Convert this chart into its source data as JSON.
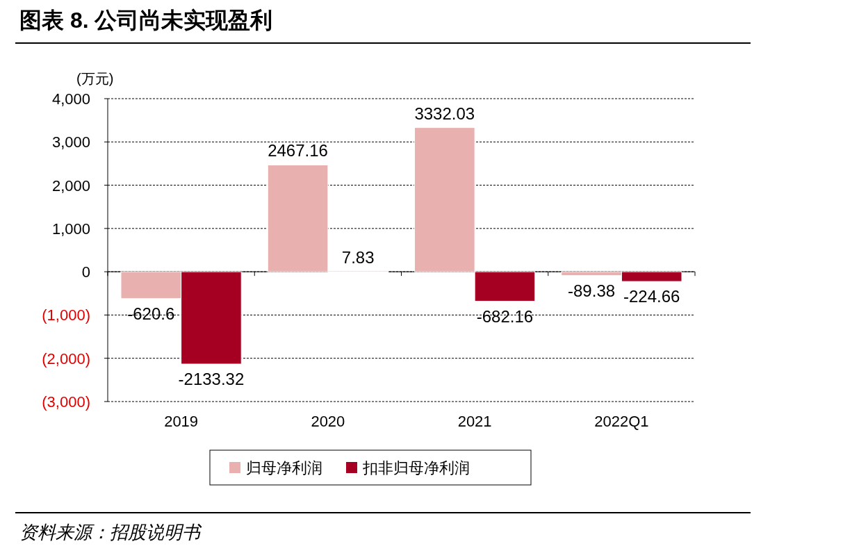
{
  "chart_data": {
    "type": "bar",
    "title": "图表 8. 公司尚未实现盈利",
    "ylabel": "(万元)",
    "categories": [
      "2019",
      "2020",
      "2021",
      "2022Q1"
    ],
    "series": [
      {
        "name": "归母净利润",
        "color": "#e8b0ae",
        "values": [
          -620.6,
          2467.16,
          3332.03,
          -89.38
        ]
      },
      {
        "name": "扣非归母净利润",
        "color": "#a50021",
        "values": [
          -2133.32,
          7.83,
          -682.16,
          -224.66
        ]
      }
    ],
    "ylim": [
      -3000,
      4000
    ],
    "yticks": [
      {
        "value": -3000,
        "label": "(3,000)"
      },
      {
        "value": -2000,
        "label": "(2,000)"
      },
      {
        "value": -1000,
        "label": "(1,000)"
      },
      0,
      {
        "value": 1000,
        "label": "1,000"
      },
      {
        "value": 2000,
        "label": "2,000"
      },
      {
        "value": 3000,
        "label": "3,000"
      },
      {
        "value": 4000,
        "label": "4,000"
      }
    ],
    "grid": "y",
    "legend": "bottom",
    "data_labels": true,
    "annotations": [
      "资料来源：招股说明书"
    ]
  }
}
